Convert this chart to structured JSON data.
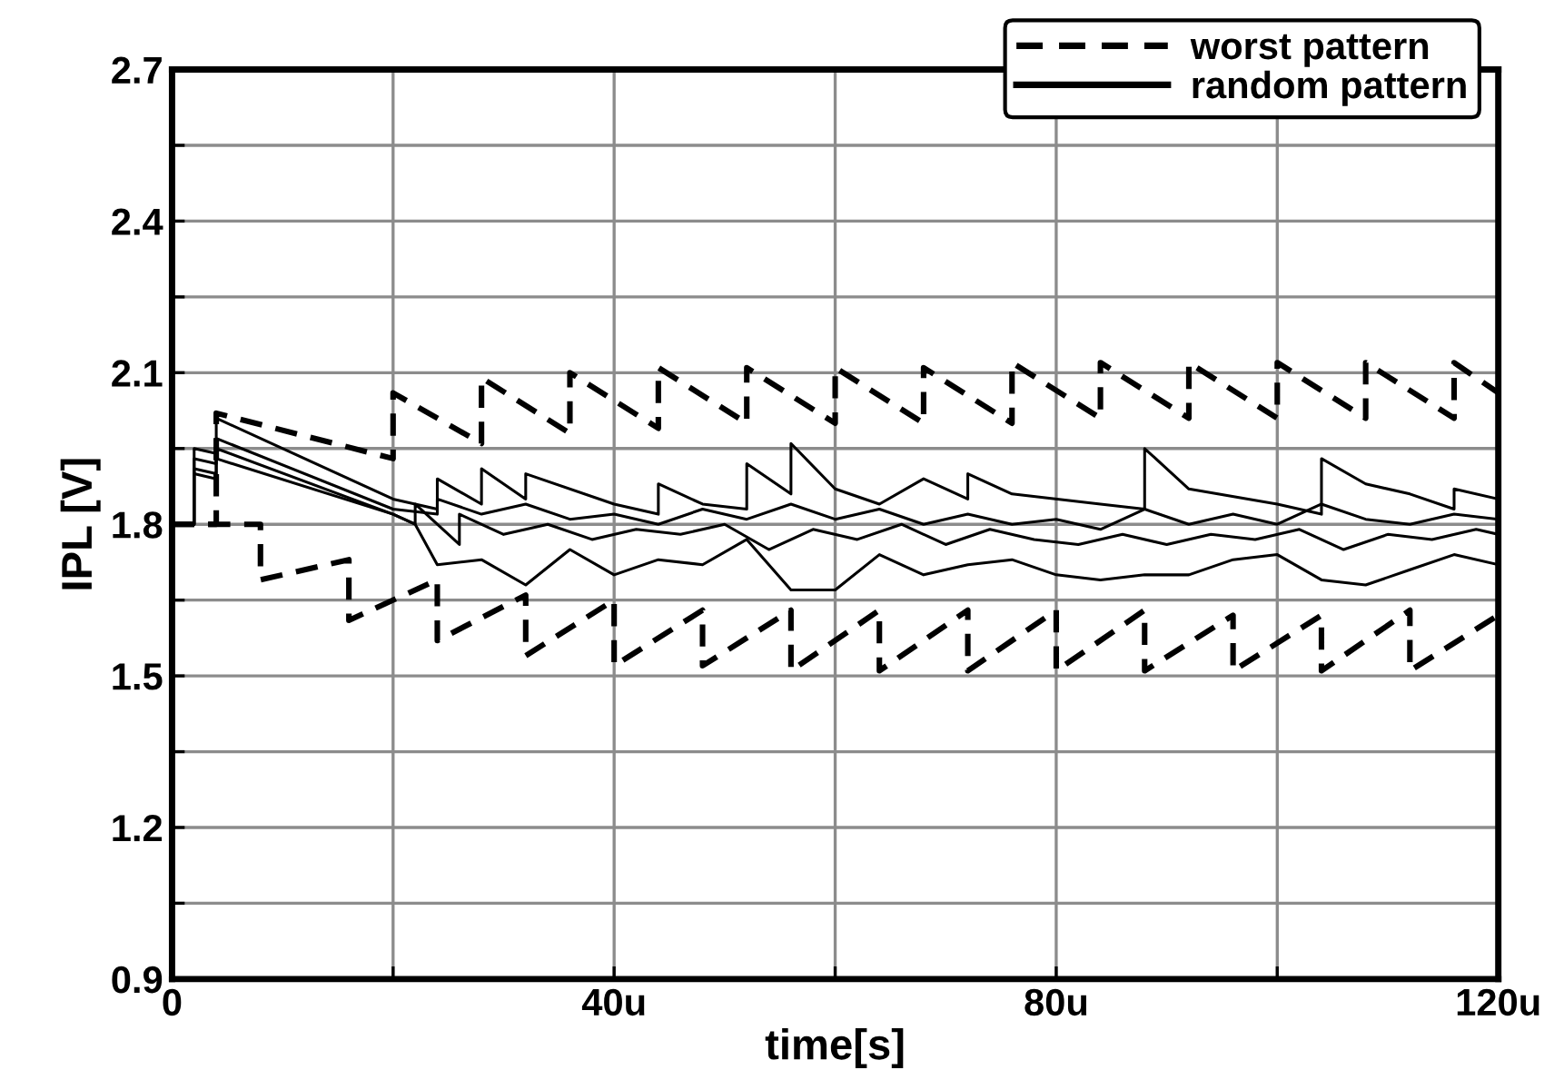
{
  "chart_data": {
    "type": "line",
    "xlabel": "time[s]",
    "ylabel": "IPL [V]",
    "xlim": [
      0,
      120
    ],
    "ylim": [
      0.9,
      2.7
    ],
    "xticks": [
      0,
      {
        "value": 20,
        "label": null
      },
      {
        "value": 40,
        "label": "40u"
      },
      {
        "value": 60,
        "label": null
      },
      {
        "value": 80,
        "label": "80u"
      },
      {
        "value": 100,
        "label": null
      },
      {
        "value": 120,
        "label": "120u"
      }
    ],
    "yticks": [
      0.9,
      {
        "value": 1.05,
        "label": null
      },
      1.2,
      {
        "value": 1.35,
        "label": null
      },
      1.5,
      {
        "value": 1.65,
        "label": null
      },
      1.8,
      {
        "value": 1.95,
        "label": null
      },
      2.1,
      {
        "value": 2.25,
        "label": null
      },
      2.4,
      {
        "value": 2.55,
        "label": null
      },
      2.7
    ],
    "grid": true,
    "legend": "top right",
    "marker": "none",
    "series": [
      {
        "name": "worst pattern",
        "color": "#000000",
        "line_style": "dashed",
        "x": [
          0,
          4,
          4,
          20,
          20,
          28,
          28,
          36,
          36,
          44,
          44,
          52,
          52,
          60,
          60,
          68,
          68,
          76,
          76,
          84,
          84,
          92,
          92,
          100,
          100,
          108,
          108,
          116,
          116,
          120
        ],
        "values": [
          1.8,
          1.8,
          2.02,
          1.93,
          2.06,
          1.96,
          2.09,
          1.98,
          2.1,
          1.99,
          2.11,
          2.0,
          2.11,
          2.0,
          2.11,
          2.0,
          2.11,
          2.0,
          2.12,
          2.01,
          2.12,
          2.01,
          2.12,
          2.01,
          2.12,
          2.01,
          2.12,
          2.01,
          2.12,
          2.06
        ]
      },
      {
        "color": "#000000",
        "line_style": "dashed",
        "x": [
          0,
          8,
          8,
          16,
          16,
          24,
          24,
          32,
          32,
          40,
          40,
          48,
          48,
          56,
          56,
          64,
          64,
          72,
          72,
          80,
          80,
          88,
          88,
          96,
          96,
          104,
          104,
          112,
          112,
          120
        ],
        "values": [
          1.8,
          1.8,
          1.69,
          1.73,
          1.61,
          1.69,
          1.57,
          1.66,
          1.54,
          1.65,
          1.52,
          1.63,
          1.52,
          1.63,
          1.51,
          1.63,
          1.51,
          1.63,
          1.51,
          1.63,
          1.51,
          1.63,
          1.51,
          1.62,
          1.51,
          1.62,
          1.51,
          1.63,
          1.51,
          1.62
        ]
      },
      {
        "name": "random pattern",
        "color": "#000000",
        "line_style": "solid",
        "x": [
          0,
          2,
          2,
          4,
          4,
          20,
          24,
          24,
          28,
          28,
          32,
          32,
          40,
          44,
          44,
          48,
          52,
          52,
          56,
          56,
          60,
          64,
          68,
          72,
          72,
          76,
          84,
          88,
          88,
          92,
          100,
          104,
          104,
          108,
          112,
          116,
          116,
          120
        ],
        "values": [
          1.8,
          1.8,
          1.95,
          1.94,
          2.01,
          1.85,
          1.83,
          1.89,
          1.84,
          1.91,
          1.85,
          1.9,
          1.84,
          1.82,
          1.88,
          1.84,
          1.83,
          1.92,
          1.86,
          1.96,
          1.87,
          1.84,
          1.89,
          1.85,
          1.9,
          1.86,
          1.84,
          1.83,
          1.95,
          1.87,
          1.84,
          1.82,
          1.93,
          1.88,
          1.86,
          1.83,
          1.87,
          1.85
        ]
      },
      {
        "color": "#000000",
        "line_style": "solid",
        "x": [
          0,
          2,
          2,
          4,
          4,
          20,
          24,
          24,
          28,
          32,
          36,
          40,
          44,
          48,
          52,
          56,
          60,
          64,
          68,
          72,
          76,
          80,
          84,
          88,
          92,
          96,
          100,
          104,
          108,
          112,
          116,
          120
        ],
        "values": [
          1.8,
          1.8,
          1.93,
          1.92,
          1.97,
          1.83,
          1.82,
          1.85,
          1.82,
          1.84,
          1.81,
          1.82,
          1.8,
          1.83,
          1.81,
          1.84,
          1.81,
          1.83,
          1.8,
          1.82,
          1.8,
          1.81,
          1.79,
          1.83,
          1.8,
          1.82,
          1.8,
          1.84,
          1.81,
          1.8,
          1.82,
          1.81
        ]
      },
      {
        "color": "#000000",
        "line_style": "solid",
        "x": [
          0,
          2,
          2,
          4,
          4,
          20,
          22,
          22,
          26,
          26,
          30,
          34,
          38,
          42,
          46,
          50,
          54,
          58,
          62,
          66,
          70,
          74,
          78,
          82,
          86,
          90,
          94,
          98,
          102,
          106,
          110,
          114,
          118,
          120
        ],
        "values": [
          1.8,
          1.8,
          1.91,
          1.9,
          1.95,
          1.82,
          1.8,
          1.84,
          1.76,
          1.82,
          1.78,
          1.8,
          1.77,
          1.79,
          1.78,
          1.8,
          1.75,
          1.79,
          1.77,
          1.8,
          1.76,
          1.79,
          1.77,
          1.76,
          1.78,
          1.76,
          1.78,
          1.77,
          1.79,
          1.75,
          1.78,
          1.77,
          1.79,
          1.78
        ]
      },
      {
        "color": "#000000",
        "line_style": "solid",
        "x": [
          0,
          2,
          2,
          4,
          4,
          20,
          22,
          24,
          28,
          32,
          36,
          40,
          44,
          48,
          52,
          56,
          60,
          64,
          68,
          72,
          76,
          80,
          84,
          88,
          92,
          96,
          100,
          104,
          108,
          112,
          116,
          120
        ],
        "values": [
          1.8,
          1.8,
          1.9,
          1.89,
          1.93,
          1.82,
          1.8,
          1.72,
          1.73,
          1.68,
          1.75,
          1.7,
          1.73,
          1.72,
          1.77,
          1.67,
          1.67,
          1.74,
          1.7,
          1.72,
          1.73,
          1.7,
          1.69,
          1.7,
          1.7,
          1.73,
          1.74,
          1.69,
          1.68,
          1.71,
          1.74,
          1.72
        ]
      }
    ]
  }
}
